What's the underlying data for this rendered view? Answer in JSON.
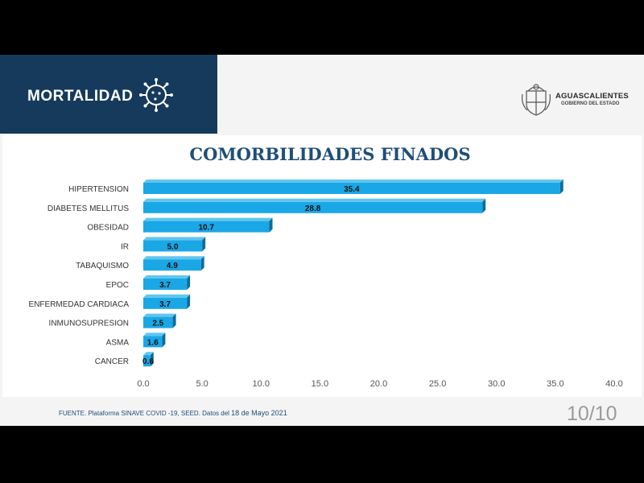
{
  "header": {
    "title": "MORTALIDAD",
    "icon": "virus-icon"
  },
  "logo": {
    "title": "AGUASCALIENTES",
    "subtitle": "GOBIERNO DEL ESTADO",
    "icon": "coat-of-arms-icon"
  },
  "footer": {
    "source_prefix": "FUENTE. Plataforma SINAVE COVID -19, SEED. Datos del ",
    "date": "18 de Mayo 2021"
  },
  "page_number": "10/10",
  "colors": {
    "header_bg": "#153a5b",
    "bar_front": "#1aa7e6",
    "bar_top": "#5fc6f0",
    "bar_side": "#0d6c9c",
    "title": "#1f4e79"
  },
  "chart_data": {
    "type": "bar",
    "orientation": "horizontal",
    "title": "COMORBILIDADES FINADOS",
    "categories": [
      "HIPERTENSION",
      "DIABETES MELLITUS",
      "OBESIDAD",
      "IR",
      "TABAQUISMO",
      "EPOC",
      "ENFERMEDAD CARDIACA",
      "INMUNOSUPRESION",
      "ASMA",
      "CANCER"
    ],
    "values": [
      35.4,
      28.8,
      10.7,
      5.0,
      4.9,
      3.7,
      3.7,
      2.5,
      1.6,
      0.6
    ],
    "value_labels": [
      "35.4",
      "28.8",
      "10.7",
      "5.0",
      "4.9",
      "3.7",
      "3.7",
      "2.5",
      "1.6",
      "0.6"
    ],
    "xlim": [
      0,
      40
    ],
    "xticks": [
      "0.0",
      "5.0",
      "10.0",
      "15.0",
      "20.0",
      "25.0",
      "30.0",
      "35.0",
      "40.0"
    ],
    "grid": false,
    "legend": "none"
  }
}
